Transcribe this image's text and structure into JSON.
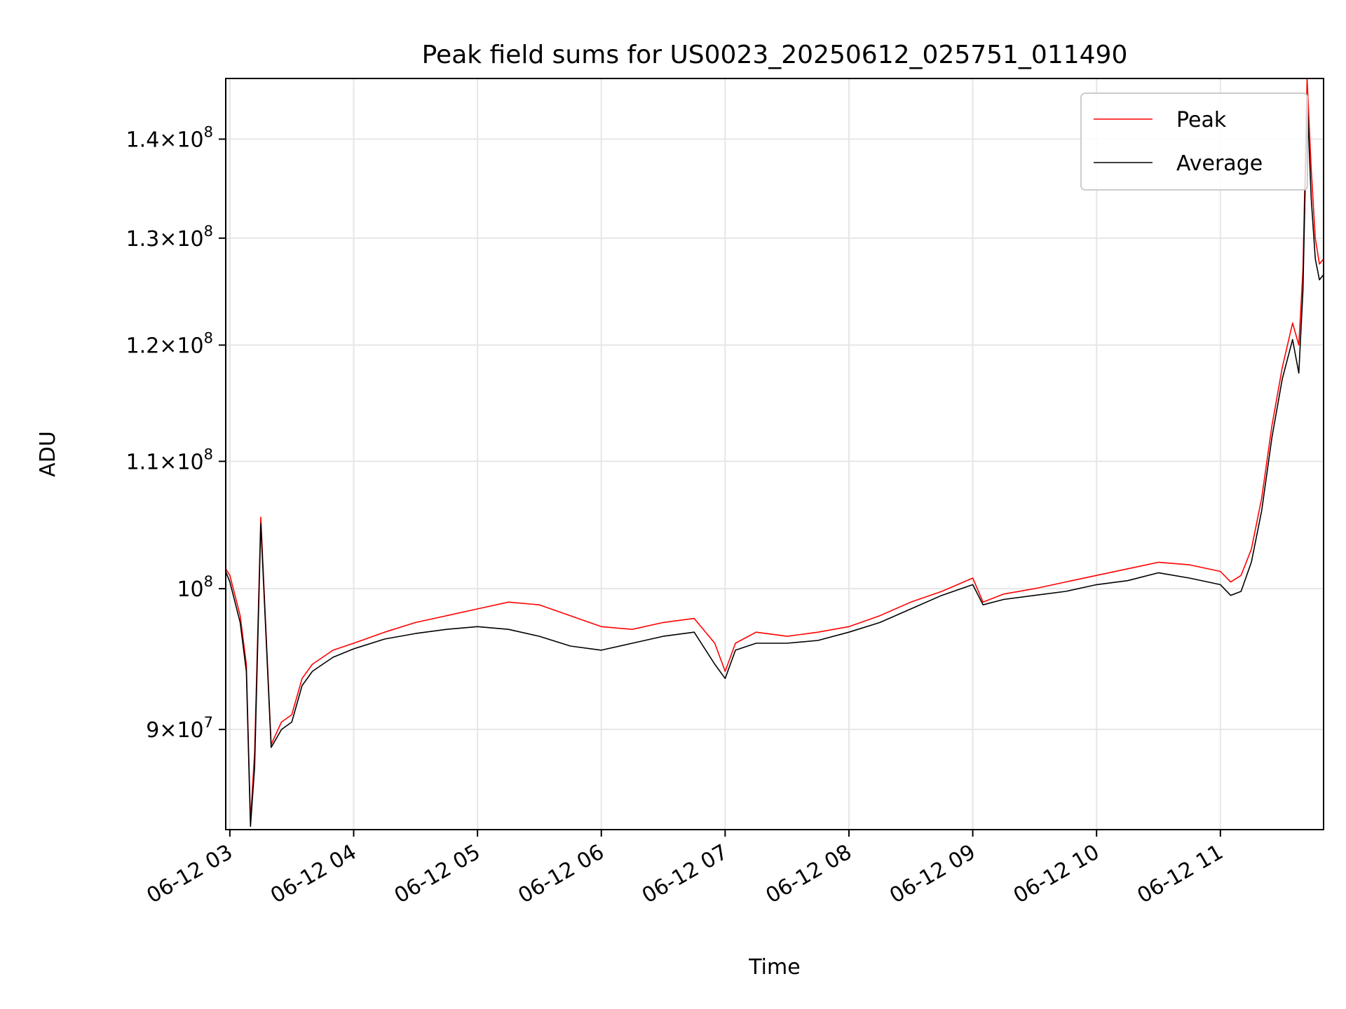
{
  "chart_data": {
    "type": "line",
    "title": "Peak field sums for US0023_20250612_025751_011490",
    "xlabel": "Time",
    "ylabel": "ADU",
    "y_scale": "log",
    "ylim": [
      83500000,
      146500000
    ],
    "xlim": [
      "06-12 02:58",
      "06-12 11:50"
    ],
    "grid": true,
    "legend_position": "top-right",
    "x_ticks": [
      "06-12 03",
      "06-12 04",
      "06-12 05",
      "06-12 06",
      "06-12 07",
      "06-12 08",
      "06-12 09",
      "06-12 10",
      "06-12 11"
    ],
    "y_ticks": [
      {
        "value": 90000000,
        "mantissa": "9",
        "exponent": "7"
      },
      {
        "value": 100000000,
        "mantissa": "",
        "exponent": "8"
      },
      {
        "value": 110000000,
        "mantissa": "1.1",
        "exponent": "8"
      },
      {
        "value": 120000000,
        "mantissa": "1.2",
        "exponent": "8"
      },
      {
        "value": 130000000,
        "mantissa": "1.3",
        "exponent": "8"
      },
      {
        "value": 140000000,
        "mantissa": "1.4",
        "exponent": "8"
      }
    ],
    "x": [
      "06-12 02:58",
      "06-12 03:00",
      "06-12 03:05",
      "06-12 03:08",
      "06-12 03:10",
      "06-12 03:12",
      "06-12 03:15",
      "06-12 03:20",
      "06-12 03:25",
      "06-12 03:30",
      "06-12 03:35",
      "06-12 03:40",
      "06-12 03:45",
      "06-12 03:50",
      "06-12 04:00",
      "06-12 04:15",
      "06-12 04:30",
      "06-12 04:45",
      "06-12 05:00",
      "06-12 05:15",
      "06-12 05:30",
      "06-12 05:45",
      "06-12 06:00",
      "06-12 06:15",
      "06-12 06:30",
      "06-12 06:45",
      "06-12 06:55",
      "06-12 07:00",
      "06-12 07:05",
      "06-12 07:15",
      "06-12 07:30",
      "06-12 07:45",
      "06-12 08:00",
      "06-12 08:15",
      "06-12 08:30",
      "06-12 08:45",
      "06-12 09:00",
      "06-12 09:05",
      "06-12 09:15",
      "06-12 09:30",
      "06-12 09:45",
      "06-12 10:00",
      "06-12 10:15",
      "06-12 10:30",
      "06-12 10:45",
      "06-12 11:00",
      "06-12 11:05",
      "06-12 11:10",
      "06-12 11:15",
      "06-12 11:20",
      "06-12 11:25",
      "06-12 11:30",
      "06-12 11:35",
      "06-12 11:38",
      "06-12 11:40",
      "06-12 11:42",
      "06-12 11:44",
      "06-12 11:46",
      "06-12 11:48",
      "06-12 11:50"
    ],
    "series": [
      {
        "name": "Peak",
        "color": "#ff0000",
        "values": [
          101500000,
          101000000,
          98000000,
          94500000,
          84000000,
          88500000,
          105500000,
          89000000,
          90500000,
          91000000,
          93500000,
          94500000,
          95000000,
          95500000,
          96000000,
          96800000,
          97500000,
          98000000,
          98500000,
          99000000,
          98800000,
          98000000,
          97200000,
          97000000,
          97500000,
          97800000,
          96000000,
          94000000,
          96000000,
          96800000,
          96500000,
          96800000,
          97200000,
          98000000,
          99000000,
          99800000,
          100800000,
          99000000,
          99600000,
          100000000,
          100500000,
          101000000,
          101500000,
          102000000,
          101800000,
          101300000,
          100500000,
          101000000,
          103000000,
          107000000,
          113000000,
          118000000,
          122000000,
          120000000,
          127000000,
          146500000,
          137000000,
          130000000,
          127500000,
          128000000
        ]
      },
      {
        "name": "Average",
        "color": "#000000",
        "values": [
          101300000,
          100500000,
          97500000,
          94000000,
          83700000,
          87500000,
          105000000,
          88800000,
          90000000,
          90500000,
          93000000,
          94000000,
          94500000,
          95000000,
          95600000,
          96300000,
          96700000,
          97000000,
          97200000,
          97000000,
          96500000,
          95800000,
          95500000,
          96000000,
          96500000,
          96800000,
          94500000,
          93500000,
          95500000,
          96000000,
          96000000,
          96200000,
          96800000,
          97500000,
          98500000,
          99500000,
          100300000,
          98800000,
          99200000,
          99500000,
          99800000,
          100300000,
          100600000,
          101200000,
          100800000,
          100300000,
          99500000,
          99800000,
          102000000,
          106000000,
          112000000,
          117000000,
          120500000,
          117500000,
          125000000,
          144500000,
          134000000,
          128000000,
          126000000,
          126500000
        ]
      }
    ]
  }
}
